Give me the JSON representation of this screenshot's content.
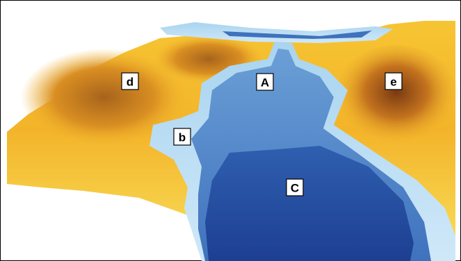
{
  "labels": [
    "d",
    "A",
    "e",
    "b",
    "C"
  ]
}
